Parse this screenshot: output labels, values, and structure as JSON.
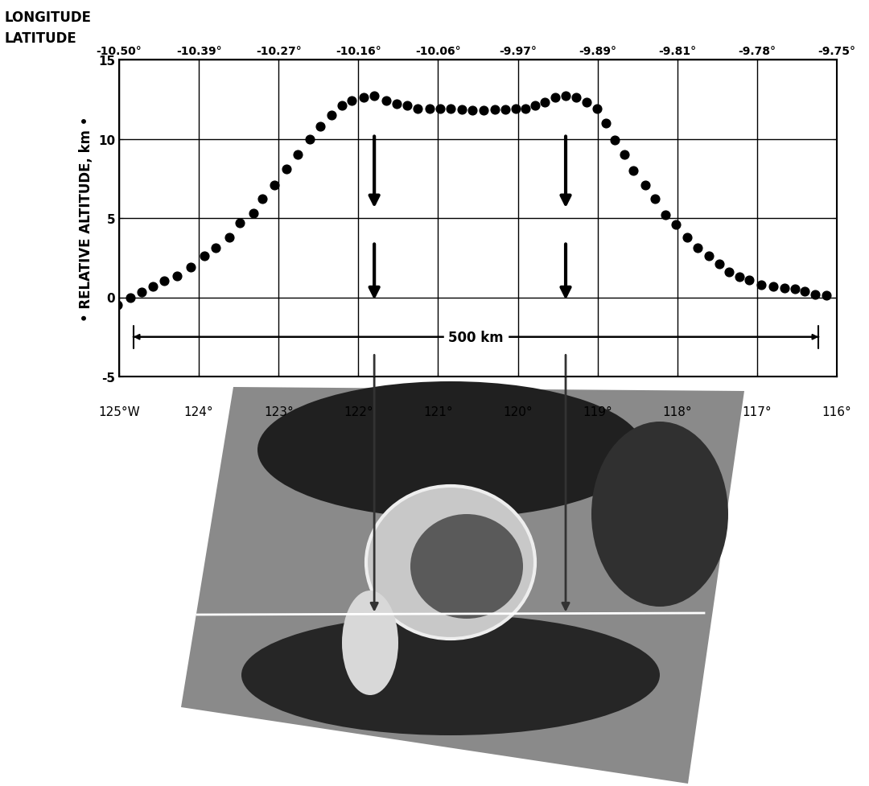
{
  "chart_data": {
    "type": "scatter",
    "ylabel": "• RELATIVE ALTITUDE, km •",
    "x_row_labels": [
      "LONGITUDE",
      "LATITUDE"
    ],
    "x": [
      125.02,
      124.86,
      124.72,
      124.58,
      124.43,
      124.27,
      124.1,
      123.93,
      123.79,
      123.62,
      123.49,
      123.32,
      123.2,
      123.05,
      122.9,
      122.76,
      122.61,
      122.48,
      122.34,
      122.21,
      122.08,
      121.93,
      121.8,
      121.65,
      121.52,
      121.39,
      121.26,
      121.11,
      120.97,
      120.84,
      120.7,
      120.57,
      120.43,
      120.29,
      120.16,
      120.03,
      119.9,
      119.78,
      119.66,
      119.53,
      119.4,
      119.27,
      119.14,
      119.01,
      118.9,
      118.78,
      118.66,
      118.55,
      118.4,
      118.28,
      118.15,
      118.02,
      117.88,
      117.75,
      117.6,
      117.47,
      117.35,
      117.22,
      117.1,
      116.95,
      116.8,
      116.66,
      116.52,
      116.4,
      116.27,
      116.13
    ],
    "values": [
      -0.5,
      0.0,
      0.35,
      0.7,
      1.05,
      1.35,
      1.9,
      2.6,
      3.1,
      3.8,
      4.7,
      5.3,
      6.2,
      7.1,
      8.1,
      9.0,
      10.0,
      10.8,
      11.5,
      12.1,
      12.4,
      12.6,
      12.7,
      12.4,
      12.2,
      12.1,
      11.9,
      11.9,
      11.9,
      11.9,
      11.85,
      11.8,
      11.8,
      11.85,
      11.85,
      11.9,
      11.9,
      12.1,
      12.3,
      12.6,
      12.7,
      12.6,
      12.3,
      11.9,
      11.0,
      9.9,
      9.0,
      8.0,
      7.1,
      6.2,
      5.2,
      4.6,
      3.8,
      3.1,
      2.6,
      2.1,
      1.6,
      1.3,
      1.1,
      0.8,
      0.7,
      0.6,
      0.55,
      0.4,
      0.2,
      0.15
    ],
    "color": "#000000",
    "marker": "o",
    "xlim": [
      125,
      116
    ],
    "xticks": [
      {
        "value": 125,
        "label": "125°W"
      },
      {
        "value": 124,
        "label": "124°"
      },
      {
        "value": 123,
        "label": "123°"
      },
      {
        "value": 122,
        "label": "122°"
      },
      {
        "value": 121,
        "label": "121°"
      },
      {
        "value": 120,
        "label": "120°"
      },
      {
        "value": 119,
        "label": "119°"
      },
      {
        "value": 118,
        "label": "118°"
      },
      {
        "value": 117,
        "label": "117°"
      },
      {
        "value": 116,
        "label": "116°"
      }
    ],
    "x2ticks": [
      {
        "value": 125,
        "label": "-10.50°"
      },
      {
        "value": 124,
        "label": "-10.39°"
      },
      {
        "value": 123,
        "label": "-10.27°"
      },
      {
        "value": 122,
        "label": "-10.16°"
      },
      {
        "value": 121,
        "label": "-10.06°"
      },
      {
        "value": 120,
        "label": "-9.97°"
      },
      {
        "value": 119,
        "label": "-9.89°"
      },
      {
        "value": 118,
        "label": "-9.81°"
      },
      {
        "value": 117,
        "label": "-9.78°"
      },
      {
        "value": 116,
        "label": "-9.75°"
      }
    ],
    "ylim": [
      -5,
      15
    ],
    "yticks": [
      -5,
      0,
      5,
      10,
      15
    ],
    "grid": true,
    "annotations": [
      {
        "text": "500 km",
        "x": [
          124.85,
          116.2
        ],
        "y": -2.5
      }
    ]
  }
}
